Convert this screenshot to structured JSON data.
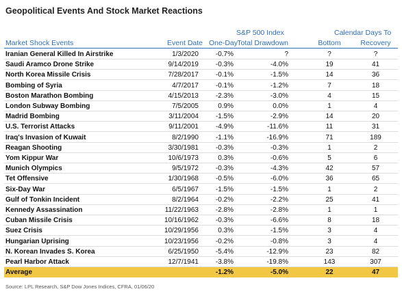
{
  "header": {
    "title": "Geopolitical Events And Stock Market Reactions"
  },
  "table": {
    "group_headers": [
      "S&P 500 Index",
      "Calendar Days To"
    ],
    "columns": [
      "Market Shock Events",
      "Event Date",
      "One-Day",
      "Total Drawdown",
      "Bottom",
      "Recovery"
    ],
    "rows": [
      [
        "Iranian General Killed In Airstrike",
        "1/3/2020",
        "-0.7%",
        "?",
        "?",
        "?"
      ],
      [
        "Saudi Aramco Drone Strike",
        "9/14/2019",
        "-0.3%",
        "-4.0%",
        "19",
        "41"
      ],
      [
        "North Korea Missile Crisis",
        "7/28/2017",
        "-0.1%",
        "-1.5%",
        "14",
        "36"
      ],
      [
        "Bombing of Syria",
        "4/7/2017",
        "-0.1%",
        "-1.2%",
        "7",
        "18"
      ],
      [
        "Boston Marathon Bombing",
        "4/15/2013",
        "-2.3%",
        "-3.0%",
        "4",
        "15"
      ],
      [
        "London Subway Bombing",
        "7/5/2005",
        "0.9%",
        "0.0%",
        "1",
        "4"
      ],
      [
        "Madrid Bombing",
        "3/11/2004",
        "-1.5%",
        "-2.9%",
        "14",
        "20"
      ],
      [
        "U.S. Terrorist Attacks",
        "9/11/2001",
        "-4.9%",
        "-11.6%",
        "11",
        "31"
      ],
      [
        "Iraq's Invasion of Kuwait",
        "8/2/1990",
        "-1.1%",
        "-16.9%",
        "71",
        "189"
      ],
      [
        "Reagan Shooting",
        "3/30/1981",
        "-0.3%",
        "-0.3%",
        "1",
        "2"
      ],
      [
        "Yom Kippur War",
        "10/6/1973",
        "0.3%",
        "-0.6%",
        "5",
        "6"
      ],
      [
        "Munich Olympics",
        "9/5/1972",
        "-0.3%",
        "-4.3%",
        "42",
        "57"
      ],
      [
        "Tet Offensive",
        "1/30/1968",
        "-0.5%",
        "-6.0%",
        "36",
        "65"
      ],
      [
        "Six-Day War",
        "6/5/1967",
        "-1.5%",
        "-1.5%",
        "1",
        "2"
      ],
      [
        "Gulf of Tonkin Incident",
        "8/2/1964",
        "-0.2%",
        "-2.2%",
        "25",
        "41"
      ],
      [
        "Kennedy Assassination",
        "11/22/1963",
        "-2.8%",
        "-2.8%",
        "1",
        "1"
      ],
      [
        "Cuban Missile Crisis",
        "10/16/1962",
        "-0.3%",
        "-6.6%",
        "8",
        "18"
      ],
      [
        "Suez Crisis",
        "10/29/1956",
        "0.3%",
        "-1.5%",
        "3",
        "4"
      ],
      [
        "Hungarian Uprising",
        "10/23/1956",
        "-0.2%",
        "-0.8%",
        "3",
        "4"
      ],
      [
        "N. Korean Invades S. Korea",
        "6/25/1950",
        "-5.4%",
        "-12.9%",
        "23",
        "82"
      ],
      [
        "Pearl Harbor Attack",
        "12/7/1941",
        "-3.8%",
        "-19.8%",
        "143",
        "307"
      ],
      [
        "Average",
        "",
        "-1.2%",
        "-5.0%",
        "22",
        "47"
      ]
    ]
  },
  "footer": {
    "source": "Source: LPL Research, S&P Dow Jones Indices, CFRA, 01/06/20"
  }
}
